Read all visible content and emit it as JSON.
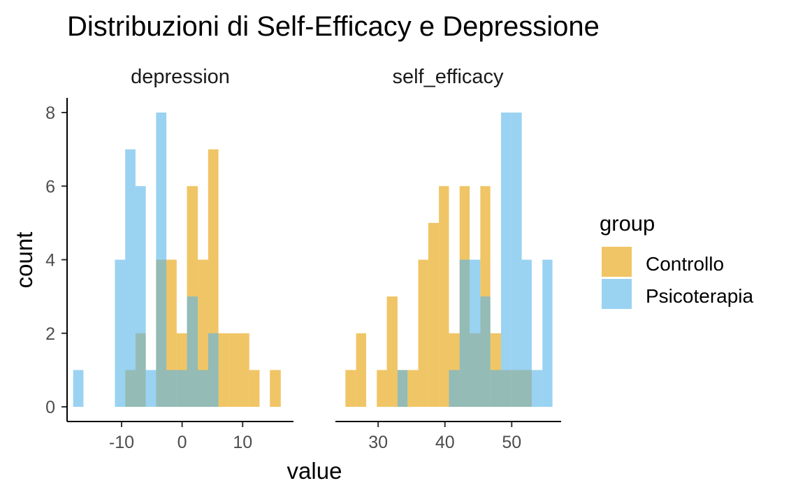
{
  "chart_data": {
    "type": "histogram",
    "title": "Distribuzioni di Self-Efficacy e Depressione",
    "xlabel": "value",
    "ylabel": "count",
    "grid": false,
    "legend": {
      "title": "group",
      "position": "right",
      "entries": [
        {
          "name": "Controllo",
          "color": "#E69F00"
        },
        {
          "name": "Psicoterapia",
          "color": "#56B4E9"
        }
      ]
    },
    "ylim": [
      0,
      8
    ],
    "y_ticks": [
      0,
      2,
      4,
      6,
      8
    ],
    "y_tick_labels": [
      "0",
      "2",
      "4",
      "6",
      "8"
    ],
    "fill_alpha": 0.6,
    "panels": [
      {
        "label": "depression",
        "xlim": [
          -19.0,
          18.4
        ],
        "x_ticks": [
          -10,
          0,
          10
        ],
        "x_tick_labels": [
          "-10",
          "0",
          "10"
        ],
        "series": [
          {
            "name": "Controllo",
            "bins": [
              {
                "x0": -9.4,
                "x1": -7.7,
                "count": 1
              },
              {
                "x0": -7.7,
                "x1": -6.0,
                "count": 2
              },
              {
                "x0": -4.3,
                "x1": -2.6,
                "count": 4
              },
              {
                "x0": -2.6,
                "x1": -0.9,
                "count": 4
              },
              {
                "x0": -0.9,
                "x1": 0.8,
                "count": 2
              },
              {
                "x0": 0.8,
                "x1": 2.6,
                "count": 6
              },
              {
                "x0": 2.6,
                "x1": 4.3,
                "count": 4
              },
              {
                "x0": 4.3,
                "x1": 6.0,
                "count": 7
              },
              {
                "x0": 6.0,
                "x1": 7.7,
                "count": 2
              },
              {
                "x0": 7.7,
                "x1": 9.4,
                "count": 2
              },
              {
                "x0": 9.4,
                "x1": 11.1,
                "count": 2
              },
              {
                "x0": 11.1,
                "x1": 12.8,
                "count": 1
              },
              {
                "x0": 14.5,
                "x1": 16.3,
                "count": 1
              }
            ]
          },
          {
            "name": "Psicoterapia",
            "bins": [
              {
                "x0": -18.0,
                "x1": -16.3,
                "count": 1
              },
              {
                "x0": -11.1,
                "x1": -9.4,
                "count": 4
              },
              {
                "x0": -9.4,
                "x1": -7.7,
                "count": 7
              },
              {
                "x0": -7.7,
                "x1": -6.0,
                "count": 6
              },
              {
                "x0": -6.0,
                "x1": -4.3,
                "count": 1
              },
              {
                "x0": -4.3,
                "x1": -2.6,
                "count": 8
              },
              {
                "x0": -2.6,
                "x1": -0.9,
                "count": 1
              },
              {
                "x0": -0.9,
                "x1": 0.8,
                "count": 1
              },
              {
                "x0": 0.8,
                "x1": 2.6,
                "count": 3
              },
              {
                "x0": 2.6,
                "x1": 4.3,
                "count": 1
              },
              {
                "x0": 4.3,
                "x1": 6.0,
                "count": 2
              }
            ]
          }
        ]
      },
      {
        "label": "self_efficacy",
        "xlim": [
          23.6,
          57.4
        ],
        "x_ticks": [
          30,
          40,
          50
        ],
        "x_tick_labels": [
          "30",
          "40",
          "50"
        ],
        "series": [
          {
            "name": "Controllo",
            "bins": [
              {
                "x0": 25.1,
                "x1": 26.7,
                "count": 1
              },
              {
                "x0": 26.7,
                "x1": 28.2,
                "count": 2
              },
              {
                "x0": 29.8,
                "x1": 31.3,
                "count": 1
              },
              {
                "x0": 31.3,
                "x1": 32.9,
                "count": 3
              },
              {
                "x0": 32.9,
                "x1": 34.4,
                "count": 1
              },
              {
                "x0": 34.4,
                "x1": 36.0,
                "count": 1
              },
              {
                "x0": 36.0,
                "x1": 37.5,
                "count": 4
              },
              {
                "x0": 37.5,
                "x1": 39.1,
                "count": 5
              },
              {
                "x0": 39.1,
                "x1": 40.6,
                "count": 6
              },
              {
                "x0": 40.6,
                "x1": 42.2,
                "count": 2
              },
              {
                "x0": 42.2,
                "x1": 43.7,
                "count": 6
              },
              {
                "x0": 43.7,
                "x1": 45.3,
                "count": 2
              },
              {
                "x0": 45.3,
                "x1": 46.8,
                "count": 6
              },
              {
                "x0": 46.8,
                "x1": 48.4,
                "count": 2
              },
              {
                "x0": 48.4,
                "x1": 49.9,
                "count": 1
              },
              {
                "x0": 49.9,
                "x1": 51.5,
                "count": 1
              },
              {
                "x0": 51.5,
                "x1": 53.0,
                "count": 1
              }
            ]
          },
          {
            "name": "Psicoterapia",
            "bins": [
              {
                "x0": 32.9,
                "x1": 34.4,
                "count": 1
              },
              {
                "x0": 40.6,
                "x1": 42.2,
                "count": 1
              },
              {
                "x0": 42.2,
                "x1": 43.7,
                "count": 4
              },
              {
                "x0": 43.7,
                "x1": 45.3,
                "count": 4
              },
              {
                "x0": 45.3,
                "x1": 46.8,
                "count": 3
              },
              {
                "x0": 46.8,
                "x1": 48.4,
                "count": 1
              },
              {
                "x0": 48.4,
                "x1": 49.9,
                "count": 8
              },
              {
                "x0": 49.9,
                "x1": 51.5,
                "count": 8
              },
              {
                "x0": 51.5,
                "x1": 53.0,
                "count": 4
              },
              {
                "x0": 53.0,
                "x1": 54.6,
                "count": 1
              },
              {
                "x0": 54.6,
                "x1": 56.1,
                "count": 4
              }
            ]
          }
        ]
      }
    ]
  }
}
